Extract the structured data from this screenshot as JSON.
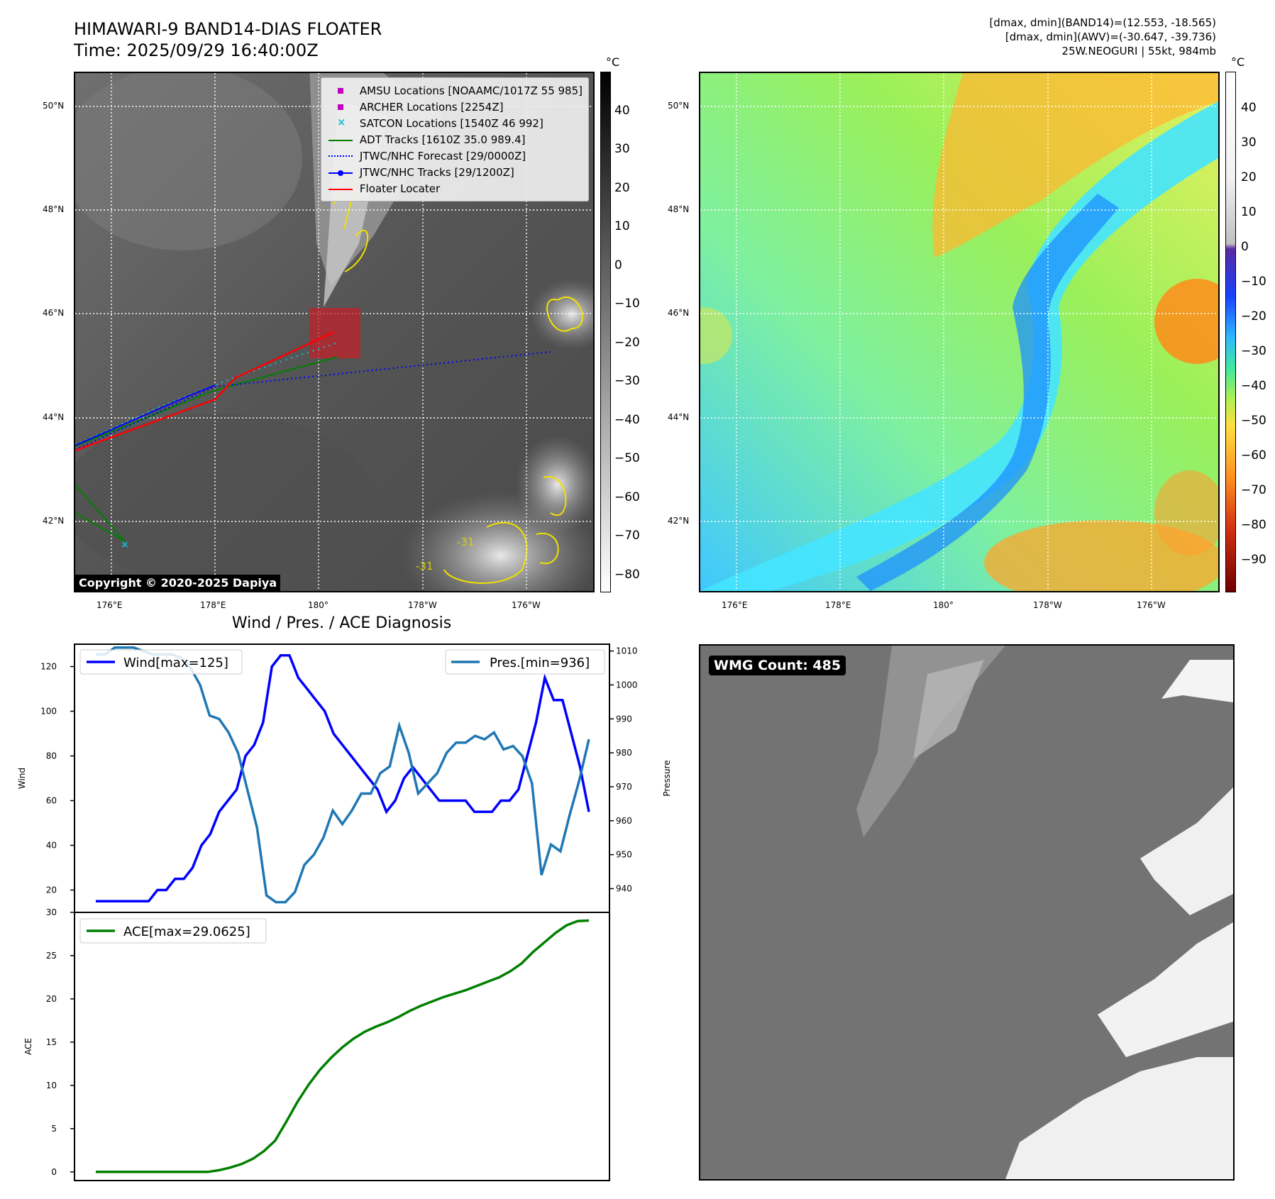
{
  "header": {
    "title_line1": "HIMAWARI-9 BAND14-DIAS FLOATER",
    "title_line2": "Time: 2025/09/29 16:40:00Z",
    "info_line1": "[dmax, dmin](BAND14)=(12.553, -18.565)",
    "info_line2": "[dmax, dmin](AWV)=(-30.647, -39.736)",
    "info_line3": "25W.NEOGURI | 55kt, 984mb"
  },
  "map": {
    "lat_labels": [
      "50°N",
      "48°N",
      "46°N",
      "44°N",
      "42°N"
    ],
    "lon_labels": [
      "176°E",
      "178°E",
      "180°",
      "178°W",
      "176°W"
    ],
    "contour_label": "-31",
    "copyright": "Copyright © 2020-2025 Dapiya",
    "legend": [
      {
        "label": "AMSU Locations [NOAAMC/1017Z 55 985]",
        "symbol": "square",
        "color": "#c000c0"
      },
      {
        "label": "ARCHER Locations [2254Z]",
        "symbol": "square",
        "color": "#c000c0"
      },
      {
        "label": "SATCON Locations [1540Z 46 992]",
        "symbol": "x",
        "color": "#17becf"
      },
      {
        "label": "ADT Tracks [1610Z 35.0 989.4]",
        "symbol": "line",
        "color": "#008000"
      },
      {
        "label": "JTWC/NHC Forecast [29/0000Z]",
        "symbol": "dotted",
        "color": "#0000ff"
      },
      {
        "label": "JTWC/NHC Tracks [29/1200Z]",
        "symbol": "line-dot",
        "color": "#0000ff"
      },
      {
        "label": "Floater Locater",
        "symbol": "line",
        "color": "#ff0000"
      }
    ]
  },
  "colorbar_left": {
    "unit": "°C",
    "ticks": [
      "40",
      "30",
      "20",
      "10",
      "0",
      "−10",
      "−20",
      "−30",
      "−40",
      "−50",
      "−60",
      "−70",
      "−80"
    ]
  },
  "colorbar_right": {
    "unit": "°C",
    "ticks": [
      "40",
      "30",
      "20",
      "10",
      "0",
      "−10",
      "−20",
      "−30",
      "−40",
      "−50",
      "−60",
      "−70",
      "−80",
      "−90"
    ]
  },
  "diagnosis": {
    "title": "Wind / Pres. / ACE Diagnosis",
    "wind_label": "Wind",
    "pressure_label": "Pressure",
    "ace_label": "ACE",
    "wind_legend": "Wind[max=125]",
    "pres_legend": "Pres.[min=936]",
    "ace_legend": "ACE[max=29.0625]",
    "wind_ticks": [
      "120",
      "100",
      "80",
      "60",
      "40",
      "20"
    ],
    "pres_ticks": [
      "1010",
      "1000",
      "990",
      "980",
      "970",
      "960",
      "950",
      "940"
    ],
    "ace_ticks": [
      "30",
      "25",
      "20",
      "15",
      "10",
      "5",
      "0"
    ]
  },
  "wmg": {
    "badge": "WMG Count: 485"
  },
  "chart_data": [
    {
      "type": "line",
      "title": "Wind / Pres. / ACE Diagnosis",
      "ylabel": "Wind",
      "ylim": [
        10,
        130
      ],
      "series": [
        {
          "name": "Wind[max=125]",
          "color": "#0000ff",
          "values": [
            15,
            15,
            15,
            15,
            15,
            15,
            15,
            20,
            20,
            25,
            25,
            30,
            40,
            45,
            55,
            60,
            65,
            80,
            85,
            95,
            120,
            125,
            125,
            115,
            110,
            105,
            100,
            90,
            85,
            80,
            75,
            70,
            65,
            55,
            60,
            70,
            75,
            70,
            65,
            60,
            60,
            60,
            60,
            55,
            55,
            55,
            60,
            60,
            65,
            80,
            95,
            115,
            105,
            105,
            90,
            75,
            55
          ]
        }
      ]
    },
    {
      "type": "line",
      "ylabel": "Pressure",
      "ylim": [
        933,
        1012
      ],
      "series": [
        {
          "name": "Pres.[min=936]",
          "color": "#1f77b4",
          "values": [
            1009,
            1009,
            1011,
            1011,
            1011,
            1010,
            1009,
            1009,
            1009,
            1008,
            1005,
            1000,
            991,
            990,
            986,
            980,
            969,
            958,
            938,
            936,
            936,
            939,
            947,
            950,
            955,
            963,
            959,
            963,
            968,
            968,
            974,
            976,
            988,
            980,
            968,
            971,
            974,
            980,
            983,
            983,
            985,
            984,
            986,
            981,
            982,
            979,
            971,
            944,
            953,
            951,
            962,
            972,
            984
          ]
        }
      ]
    },
    {
      "type": "line",
      "ylabel": "ACE",
      "ylim": [
        -1,
        30
      ],
      "series": [
        {
          "name": "ACE[max=29.0625]",
          "color": "#008000",
          "values": [
            0,
            0,
            0,
            0,
            0,
            0,
            0,
            0,
            0,
            0,
            0,
            0.2,
            0.5,
            0.9,
            1.5,
            2.4,
            3.6,
            5.8,
            8.1,
            10.1,
            11.8,
            13.2,
            14.4,
            15.4,
            16.2,
            16.8,
            17.3,
            17.9,
            18.6,
            19.2,
            19.7,
            20.2,
            20.6,
            21.0,
            21.5,
            22.0,
            22.5,
            23.2,
            24.1,
            25.4,
            26.5,
            27.6,
            28.5,
            29.0,
            29.06
          ]
        }
      ]
    }
  ]
}
